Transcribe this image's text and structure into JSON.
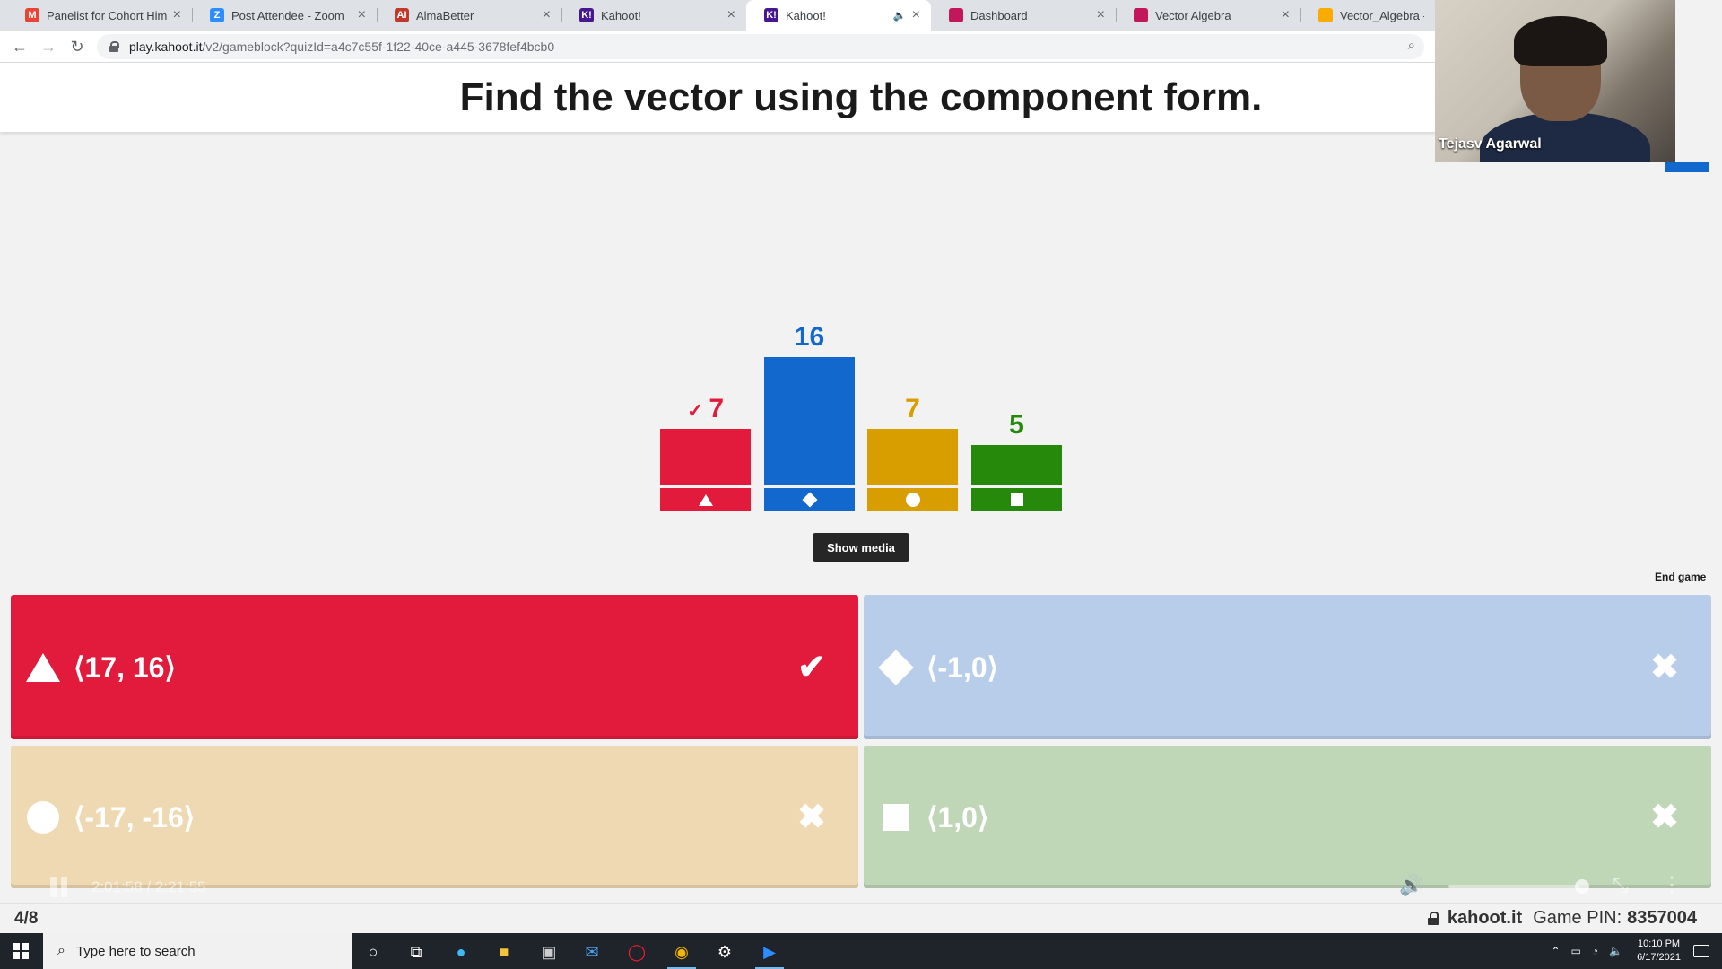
{
  "browser": {
    "tabs": [
      {
        "title": "Panelist for Cohort Himala",
        "favicon": "gmail-icon",
        "color": "#ea4335",
        "glyph": "M"
      },
      {
        "title": "Post Attendee - Zoom",
        "favicon": "zoom-icon",
        "color": "#2d8cff",
        "glyph": "Z"
      },
      {
        "title": "AlmaBetter",
        "favicon": "almabetter-icon",
        "color": "#c0392b",
        "glyph": "AI"
      },
      {
        "title": "Kahoot!",
        "favicon": "kahoot-icon",
        "color": "#46178f",
        "glyph": "K!"
      },
      {
        "title": "Kahoot!",
        "favicon": "kahoot-icon",
        "color": "#46178f",
        "glyph": "K!",
        "active": true
      },
      {
        "title": "Dashboard",
        "favicon": "dashboard-icon",
        "color": "#c2185b",
        "glyph": ""
      },
      {
        "title": "Vector Algebra",
        "favicon": "slides-icon",
        "color": "#c2185b",
        "glyph": ""
      },
      {
        "title": "Vector_Algebra - Goo",
        "favicon": "colab-icon",
        "color": "#f9ab00",
        "glyph": ""
      }
    ],
    "url_host": "play.kahoot.it",
    "url_path": "/v2/gameblock?quizId=a4c7c55f-1f22-40ce-a445-3678fef4bcb0"
  },
  "question": {
    "title": "Find the vector using the component form."
  },
  "chart_data": {
    "type": "bar",
    "categories": [
      "triangle",
      "diamond",
      "circle",
      "square"
    ],
    "values": [
      7,
      16,
      7,
      5
    ],
    "colors": [
      "#e21b3c",
      "#1368ce",
      "#d89e00",
      "#26890c"
    ],
    "correct_index": 0,
    "ylim": [
      0,
      16
    ]
  },
  "bars": [
    {
      "count": "7",
      "check": "✓",
      "shape": "triangle-icon"
    },
    {
      "count": "16",
      "check": "",
      "shape": "diamond-icon"
    },
    {
      "count": "7",
      "check": "",
      "shape": "circle-icon"
    },
    {
      "count": "5",
      "check": "",
      "shape": "square-icon"
    }
  ],
  "controls": {
    "show_media": "Show media",
    "end_game": "End game"
  },
  "answers": [
    {
      "text": "⟨17, 16⟩",
      "shape": "triangle-icon",
      "color": "#e21b3c",
      "mark": "✔",
      "correct": true
    },
    {
      "text": "⟨-1,0⟩",
      "shape": "diamond-icon",
      "color": "#b8cde9",
      "mark": "✖",
      "correct": false
    },
    {
      "text": "⟨-17, -16⟩",
      "shape": "circle-icon",
      "color": "#efd9b2",
      "mark": "✖",
      "correct": false
    },
    {
      "text": "⟨1,0⟩",
      "shape": "square-icon",
      "color": "#bfd6b7",
      "mark": "✖",
      "correct": false
    }
  ],
  "video": {
    "time": "2:01:58 / 2:21:55"
  },
  "footer": {
    "progress": "4/8",
    "site": "kahoot.it",
    "pin_label": "Game PIN:",
    "pin_value": "8357004"
  },
  "participant": {
    "name": "Tejasv Agarwal"
  },
  "taskbar": {
    "search_placeholder": "Type here to search",
    "time": "10:10 PM",
    "date": "6/17/2021"
  }
}
